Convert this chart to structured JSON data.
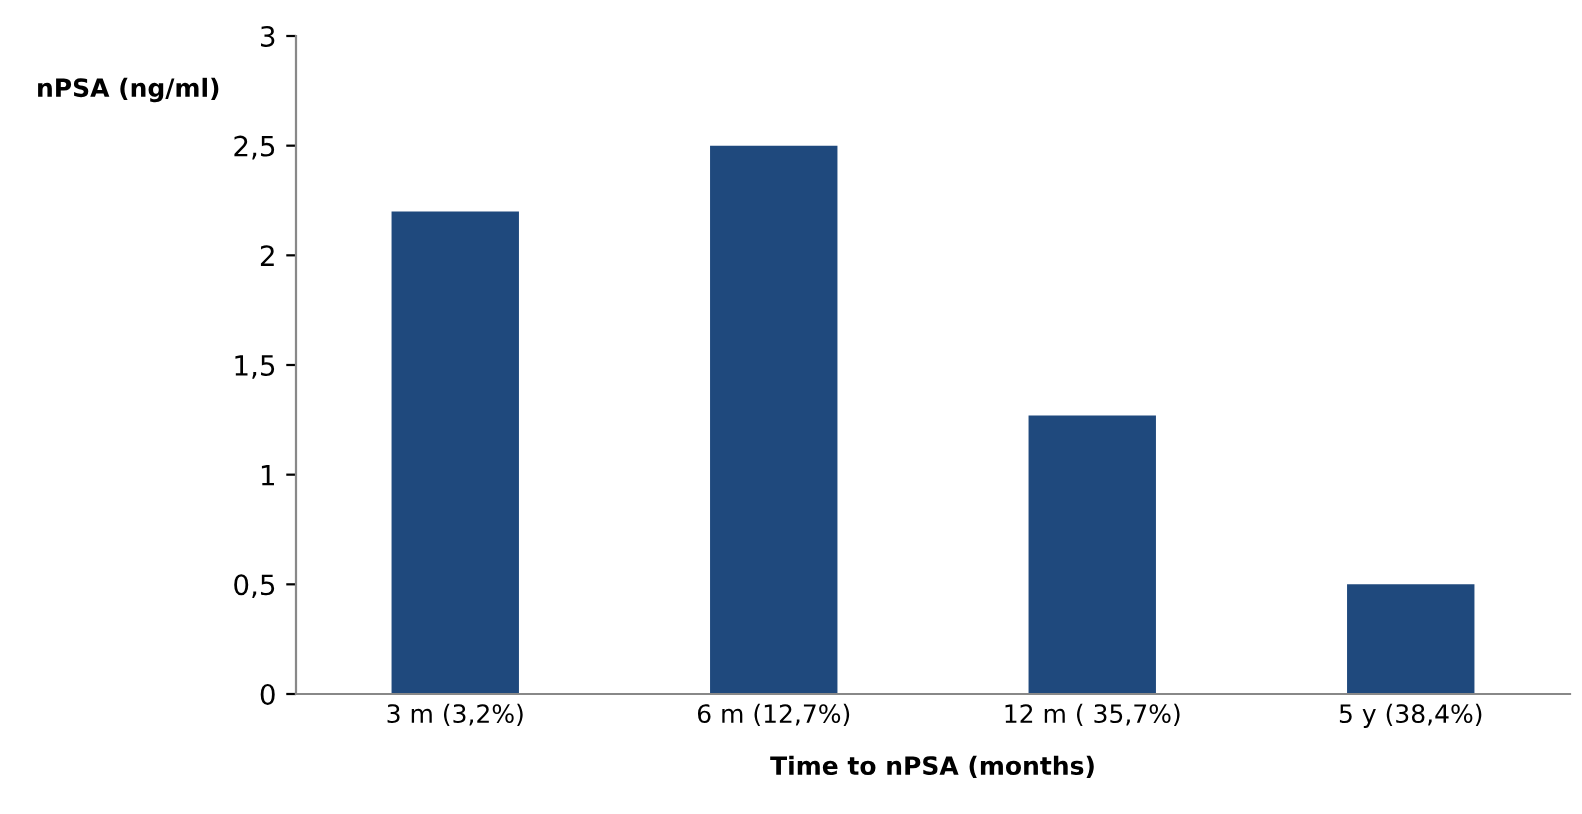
{
  "chart_data": {
    "type": "bar",
    "xlabel": "Time to nPSA (months)",
    "ylabel": "nPSA (ng/ml)",
    "categories": [
      "3 m (3,2%)",
      "6 m (12,7%)",
      "12 m ( 35,7%)",
      "5 y (38,4%)"
    ],
    "values": [
      2.2,
      2.5,
      1.27,
      0.5
    ],
    "color": "#1f497d",
    "ylim": [
      0,
      3
    ],
    "yticks": [
      0,
      {
        "value": 0.5,
        "label": "0,5"
      },
      1,
      {
        "value": 1.5,
        "label": "1,5"
      },
      2,
      {
        "value": 2.5,
        "label": "2,5"
      },
      3
    ],
    "grid": false,
    "legend": false
  }
}
